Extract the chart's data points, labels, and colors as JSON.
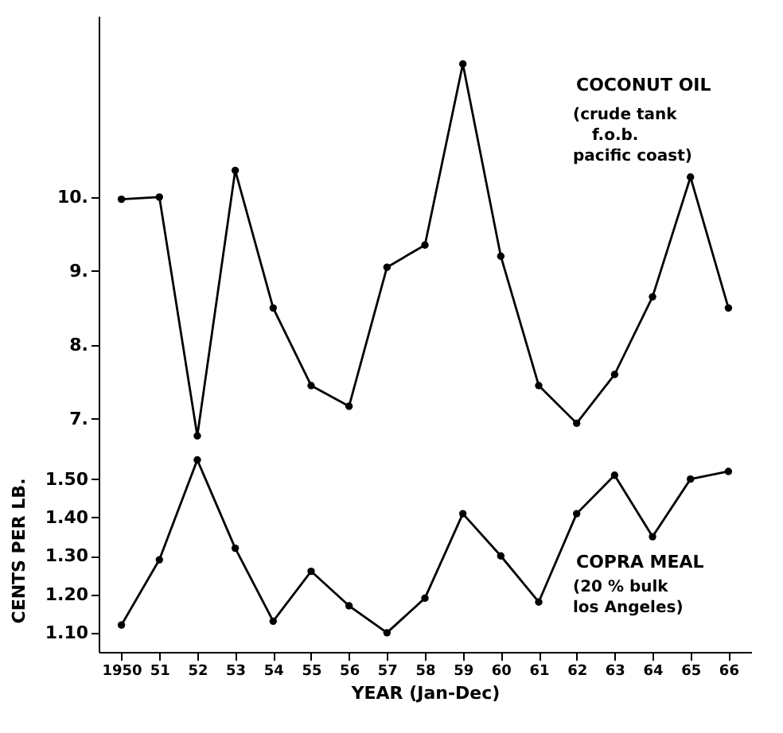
{
  "chart_data": [
    {
      "type": "line",
      "categories": [
        "1950",
        "51",
        "52",
        "53",
        "54",
        "55",
        "56",
        "57",
        "58",
        "59",
        "60",
        "61",
        "62",
        "63",
        "64",
        "65",
        "66"
      ],
      "series": [
        {
          "name": "COCONUT OIL",
          "color": "#000000",
          "values": [
            9.97,
            10.0,
            6.77,
            10.36,
            8.5,
            7.45,
            7.17,
            9.05,
            9.35,
            11.8,
            9.2,
            7.45,
            6.94,
            7.6,
            8.65,
            10.27,
            8.5
          ]
        }
      ],
      "ylim": [
        6.6,
        12.45
      ],
      "yticks": [
        {
          "value": 7,
          "label": "7."
        },
        {
          "value": 8,
          "label": "8."
        },
        {
          "value": 9,
          "label": "9."
        },
        {
          "value": 10,
          "label": "10."
        }
      ],
      "tick_labels": "y",
      "marker": "circle",
      "line_style": "solid",
      "annotations": [
        "(crude tank",
        "f.o.b.",
        "pacific coast)"
      ]
    },
    {
      "type": "line",
      "categories": [
        "1950",
        "51",
        "52",
        "53",
        "54",
        "55",
        "56",
        "57",
        "58",
        "59",
        "60",
        "61",
        "62",
        "63",
        "64",
        "65",
        "66"
      ],
      "series": [
        {
          "name": "COPRA MEAL",
          "color": "#000000",
          "values": [
            1.12,
            1.29,
            1.55,
            1.32,
            1.13,
            1.26,
            1.17,
            1.1,
            1.19,
            1.41,
            1.3,
            1.18,
            1.41,
            1.51,
            1.35,
            1.5,
            1.52
          ]
        }
      ],
      "ylim": [
        1.05,
        1.58
      ],
      "yticks": [
        {
          "value": 1.1,
          "label": "1.10"
        },
        {
          "value": 1.2,
          "label": "1.20"
        },
        {
          "value": 1.3,
          "label": "1.30"
        },
        {
          "value": 1.4,
          "label": "1.40"
        },
        {
          "value": 1.5,
          "label": "1.50"
        }
      ],
      "xlabel": "YEAR (Jan-Dec)",
      "ylabel": "CENTS PER LB.",
      "marker": "circle",
      "line_style": "solid",
      "annotations": [
        "(20 % bulk",
        "los Angeles)"
      ]
    }
  ]
}
